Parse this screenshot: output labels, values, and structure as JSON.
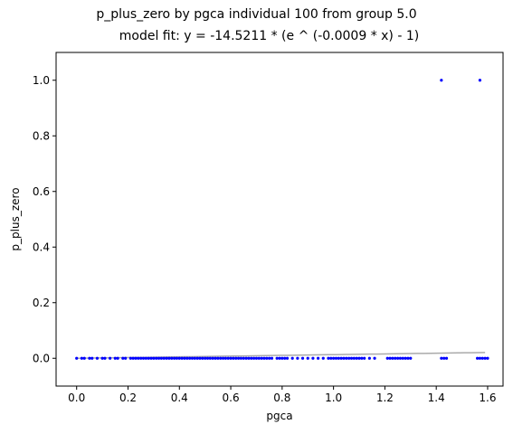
{
  "chart_data": {
    "type": "scatter",
    "title": "p_plus_zero by pgca individual 100 from group 5.0",
    "subtitle": "model fit: y = -14.5211 * (e ^ (-0.0009 * x) - 1)",
    "xlabel": "pgca",
    "ylabel": "p_plus_zero",
    "xlim": [
      -0.08,
      1.66
    ],
    "ylim": [
      -0.1,
      1.1
    ],
    "xticks": [
      "0.0",
      "0.2",
      "0.4",
      "0.6",
      "0.8",
      "1.0",
      "1.2",
      "1.4",
      "1.6"
    ],
    "yticks": [
      "0.0",
      "0.2",
      "0.4",
      "0.6",
      "0.8",
      "1.0"
    ],
    "grid": false,
    "point_color": "#0000ff",
    "fit_line_color": "#aaaaaa",
    "fit": {
      "a": -14.5211,
      "b": -0.0009,
      "x_start": 0.0,
      "x_end": 1.59
    },
    "series": [
      {
        "x": [
          0.0,
          0.02,
          0.03,
          0.05,
          0.06,
          0.08,
          0.1,
          0.11,
          0.13,
          0.15,
          0.16,
          0.18,
          0.19,
          0.21,
          0.22,
          0.23,
          0.24,
          0.25,
          0.26,
          0.27,
          0.28,
          0.29,
          0.3,
          0.31,
          0.32,
          0.33,
          0.34,
          0.35,
          0.36,
          0.37,
          0.38,
          0.39,
          0.4,
          0.41,
          0.42,
          0.43,
          0.44,
          0.45,
          0.46,
          0.47,
          0.48,
          0.49,
          0.5,
          0.51,
          0.52,
          0.53,
          0.54,
          0.55,
          0.56,
          0.57,
          0.58,
          0.59,
          0.6,
          0.61,
          0.62,
          0.63,
          0.64,
          0.65,
          0.66,
          0.67,
          0.68,
          0.69,
          0.7,
          0.71,
          0.72,
          0.73,
          0.74,
          0.75,
          0.76,
          0.78,
          0.79,
          0.8,
          0.81,
          0.82,
          0.84,
          0.86,
          0.88,
          0.9,
          0.92,
          0.94,
          0.96,
          0.98,
          0.99,
          1.0,
          1.01,
          1.02,
          1.03,
          1.04,
          1.05,
          1.06,
          1.07,
          1.08,
          1.09,
          1.1,
          1.11,
          1.12,
          1.14,
          1.16,
          1.21,
          1.22,
          1.23,
          1.24,
          1.25,
          1.26,
          1.27,
          1.28,
          1.29,
          1.3,
          1.42,
          1.43,
          1.44,
          1.56,
          1.57,
          1.58,
          1.59,
          1.6,
          1.42,
          1.57
        ],
        "y": [
          0,
          0,
          0,
          0,
          0,
          0,
          0,
          0,
          0,
          0,
          0,
          0,
          0,
          0,
          0,
          0,
          0,
          0,
          0,
          0,
          0,
          0,
          0,
          0,
          0,
          0,
          0,
          0,
          0,
          0,
          0,
          0,
          0,
          0,
          0,
          0,
          0,
          0,
          0,
          0,
          0,
          0,
          0,
          0,
          0,
          0,
          0,
          0,
          0,
          0,
          0,
          0,
          0,
          0,
          0,
          0,
          0,
          0,
          0,
          0,
          0,
          0,
          0,
          0,
          0,
          0,
          0,
          0,
          0,
          0,
          0,
          0,
          0,
          0,
          0,
          0,
          0,
          0,
          0,
          0,
          0,
          0,
          0,
          0,
          0,
          0,
          0,
          0,
          0,
          0,
          0,
          0,
          0,
          0,
          0,
          0,
          0,
          0,
          0,
          0,
          0,
          0,
          0,
          0,
          0,
          0,
          0,
          0,
          0,
          0,
          0,
          0,
          0,
          0,
          0,
          0,
          1,
          1
        ]
      }
    ]
  }
}
